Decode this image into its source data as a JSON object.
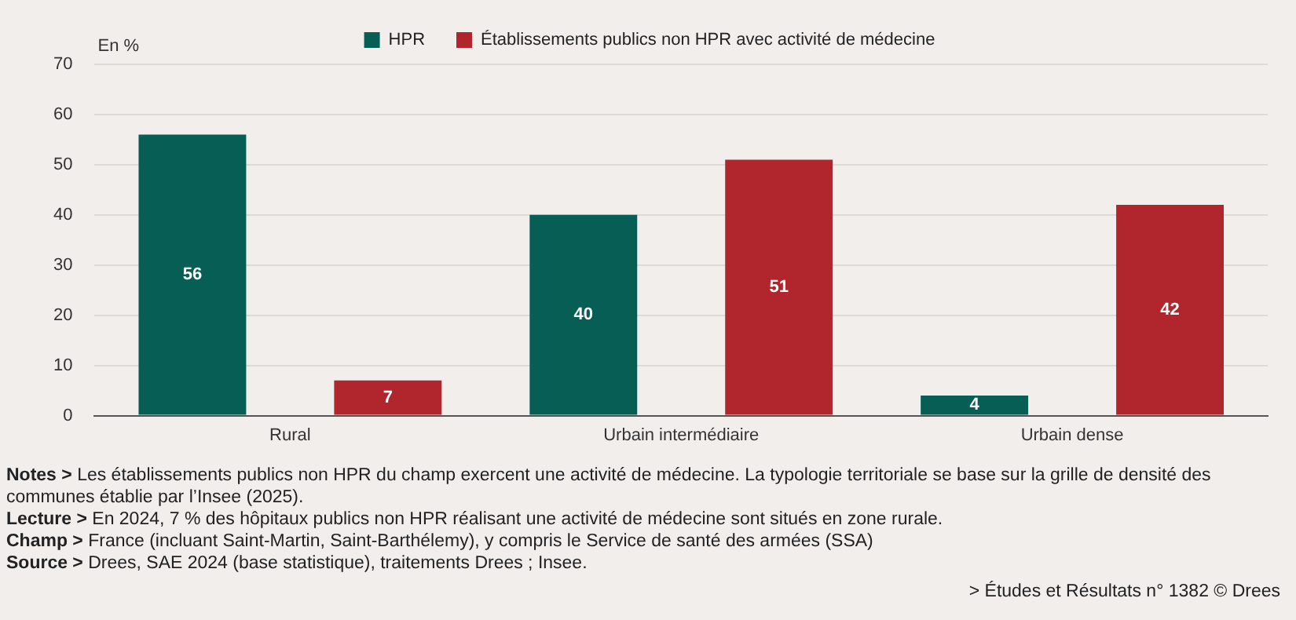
{
  "chart_data": {
    "type": "bar",
    "ylabel": "En %",
    "categories": [
      "Rural",
      "Urbain intermédiaire",
      "Urbain dense"
    ],
    "series": [
      {
        "name": "HPR",
        "color": "#065e55",
        "values": [
          56,
          40,
          4
        ]
      },
      {
        "name": "Établissements publics non HPR avec activité de médecine",
        "color": "#b0262c",
        "values": [
          7,
          51,
          42
        ]
      }
    ],
    "ylim": [
      0,
      70
    ],
    "yticks": [
      0,
      10,
      20,
      30,
      40,
      50,
      60,
      70
    ],
    "grid": "y",
    "legend": "top",
    "data_labels": true,
    "annotations": [
      "Notes > Les établissements publics non HPR du champ exercent une activité de médecine. La typologie territoriale se base sur la grille de densité des communes établie par l’Insee (2025).",
      "Lecture > En 2024, 7 % des hôpitaux publics non HPR réalisant une activité de médecine sont situés en zone rurale.",
      "Champ > France (incluant Saint-Martin, Saint-Barthélemy), y compris le Service de santé des armées (SSA)",
      "Source > Drees, SAE 2024 (base statistique), traitements Drees ; Insee.",
      "> Études et Résultats n° 1382 © Drees"
    ]
  }
}
